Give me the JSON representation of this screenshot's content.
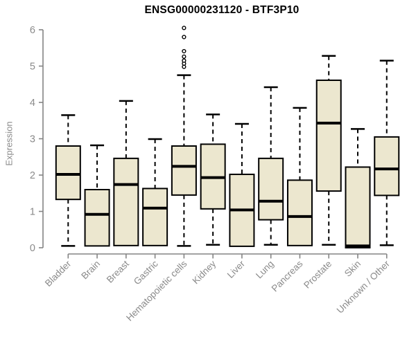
{
  "chart_data": {
    "type": "boxplot",
    "title": "ENSG00000231120 - BTF3P10",
    "ylabel": "Expression",
    "xlabel": "",
    "ylim": [
      0,
      6
    ],
    "yticks": [
      0,
      1,
      2,
      3,
      4,
      5,
      6
    ],
    "grid": false,
    "legend": "none",
    "categories": [
      "Bladder",
      "Brain",
      "Breast",
      "Gastric",
      "Hematopoietic cells",
      "Kidney",
      "Liver",
      "Lung",
      "Pancreas",
      "Prostate",
      "Skin",
      "Unknown / Other"
    ],
    "series": [
      {
        "category": "Bladder",
        "whisker_low": 0.05,
        "q1": 1.33,
        "median": 2.02,
        "q3": 2.8,
        "whisker_high": 3.65,
        "outliers": []
      },
      {
        "category": "Brain",
        "whisker_low": 0.05,
        "q1": 0.05,
        "median": 0.92,
        "q3": 1.6,
        "whisker_high": 2.82,
        "outliers": []
      },
      {
        "category": "Breast",
        "whisker_low": 0.06,
        "q1": 0.06,
        "median": 1.74,
        "q3": 2.46,
        "whisker_high": 4.04,
        "outliers": []
      },
      {
        "category": "Gastric",
        "whisker_low": 0.06,
        "q1": 0.06,
        "median": 1.09,
        "q3": 1.63,
        "whisker_high": 2.99,
        "outliers": []
      },
      {
        "category": "Hematopoietic cells",
        "whisker_low": 0.05,
        "q1": 1.45,
        "median": 2.24,
        "q3": 2.8,
        "whisker_high": 4.75,
        "outliers": [
          4.98,
          5.07,
          5.15,
          5.26,
          5.41,
          5.8,
          6.05
        ]
      },
      {
        "category": "Kidney",
        "whisker_low": 0.08,
        "q1": 1.07,
        "median": 1.93,
        "q3": 2.85,
        "whisker_high": 3.67,
        "outliers": []
      },
      {
        "category": "Liver",
        "whisker_low": 0.04,
        "q1": 0.04,
        "median": 1.04,
        "q3": 2.02,
        "whisker_high": 3.41,
        "outliers": []
      },
      {
        "category": "Lung",
        "whisker_low": 0.08,
        "q1": 0.77,
        "median": 1.28,
        "q3": 2.46,
        "whisker_high": 4.42,
        "outliers": []
      },
      {
        "category": "Pancreas",
        "whisker_low": 0.06,
        "q1": 0.06,
        "median": 0.86,
        "q3": 1.86,
        "whisker_high": 3.85,
        "outliers": []
      },
      {
        "category": "Prostate",
        "whisker_low": 0.08,
        "q1": 1.56,
        "median": 3.43,
        "q3": 4.61,
        "whisker_high": 5.28,
        "outliers": []
      },
      {
        "category": "Skin",
        "whisker_low": 0.0,
        "q1": 0.0,
        "median": 0.05,
        "q3": 2.22,
        "whisker_high": 3.27,
        "outliers": []
      },
      {
        "category": "Unknown / Other",
        "whisker_low": 0.07,
        "q1": 1.44,
        "median": 2.17,
        "q3": 3.05,
        "whisker_high": 5.15,
        "outliers": []
      }
    ],
    "colors": {
      "box_fill": "#ECE7CF",
      "box_border": "#000000",
      "median": "#000000",
      "whisker": "#000000",
      "outlier_stroke": "#000000",
      "outlier_fill": "#ffffff",
      "axis": "#848484",
      "tick_label": "#8a8a8a",
      "title": "#000000"
    }
  }
}
